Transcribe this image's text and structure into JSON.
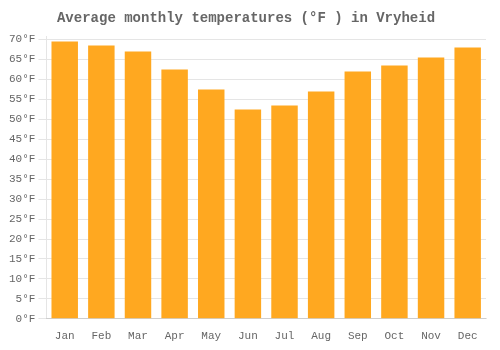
{
  "chart_data": {
    "type": "bar",
    "title": "Average monthly temperatures (°F ) in Vryheid",
    "categories": [
      "Jan",
      "Feb",
      "Mar",
      "Apr",
      "May",
      "Jun",
      "Jul",
      "Aug",
      "Sep",
      "Oct",
      "Nov",
      "Dec"
    ],
    "values": [
      69.5,
      68.5,
      67.0,
      62.5,
      57.5,
      52.5,
      53.5,
      57.0,
      62.0,
      63.5,
      65.5,
      68.0
    ],
    "color": "#FFA820",
    "ylim": [
      0,
      70.7
    ],
    "yticks": [
      {
        "value": 0,
        "label": "0°F"
      },
      {
        "value": 5,
        "label": "5°F"
      },
      {
        "value": 10,
        "label": "10°F"
      },
      {
        "value": 15,
        "label": "15°F"
      },
      {
        "value": 20,
        "label": "20°F"
      },
      {
        "value": 25,
        "label": "25°F"
      },
      {
        "value": 30,
        "label": "30°F"
      },
      {
        "value": 35,
        "label": "35°F"
      },
      {
        "value": 40,
        "label": "40°F"
      },
      {
        "value": 45,
        "label": "45°F"
      },
      {
        "value": 50,
        "label": "50°F"
      },
      {
        "value": 55,
        "label": "55°F"
      },
      {
        "value": 60,
        "label": "60°F"
      },
      {
        "value": 65,
        "label": "65°F"
      },
      {
        "value": 70,
        "label": "70°F"
      }
    ],
    "grid": "y"
  }
}
